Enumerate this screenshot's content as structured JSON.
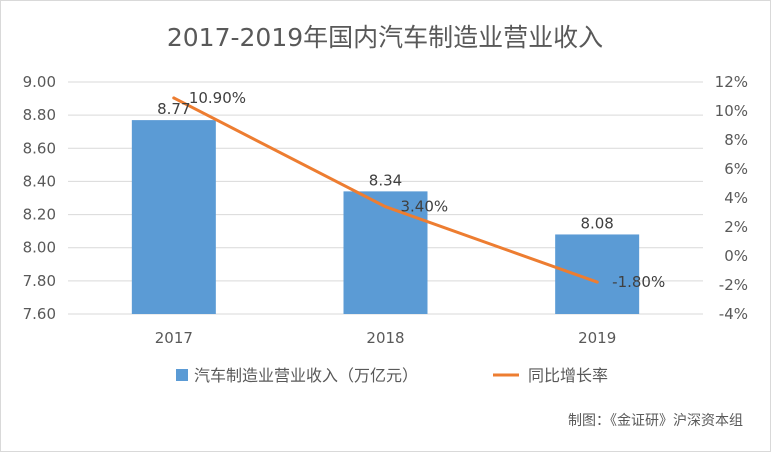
{
  "chart_data": {
    "type": "bar",
    "title": "2017-2019年国内汽车制造业营业收入",
    "categories": [
      "2017",
      "2018",
      "2019"
    ],
    "series": [
      {
        "name": "汽车制造业营业收入（万亿元）",
        "type": "bar",
        "axis": "left",
        "values": [
          8.77,
          8.34,
          8.08
        ],
        "labels": [
          "8.77",
          "8.34",
          "8.08"
        ],
        "color": "#5b9bd5"
      },
      {
        "name": "同比增长率",
        "type": "line",
        "axis": "right",
        "values": [
          10.9,
          3.4,
          -1.8
        ],
        "labels": [
          "10.90%",
          "3.40%",
          "-1.80%"
        ],
        "color": "#ed7d31"
      }
    ],
    "y_left": {
      "ylim": [
        7.6,
        9.0
      ],
      "ticks": [
        "7.60",
        "7.80",
        "8.00",
        "8.20",
        "8.40",
        "8.60",
        "8.80",
        "9.00"
      ]
    },
    "y_right": {
      "ylim": [
        -4,
        12
      ],
      "ticks": [
        "-4%",
        "-2%",
        "0%",
        "2%",
        "4%",
        "6%",
        "8%",
        "10%",
        "12%"
      ]
    },
    "grid": true,
    "legend": "bottom"
  },
  "credit": "制图：《金证研》沪深资本组"
}
